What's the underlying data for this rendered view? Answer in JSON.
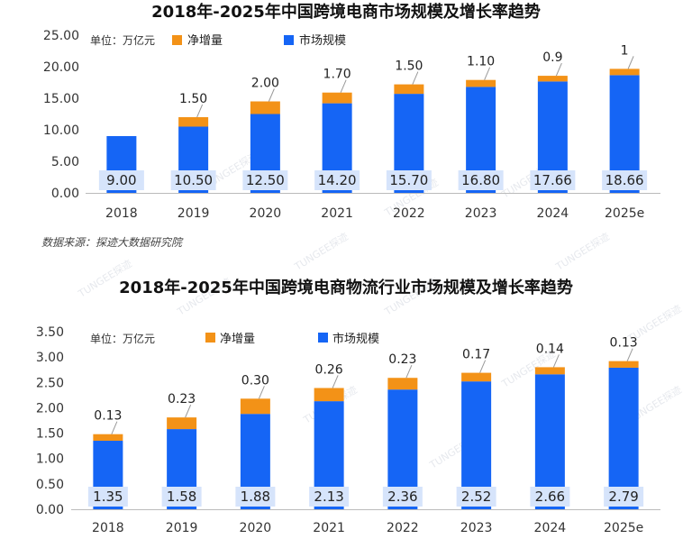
{
  "colors": {
    "market": "#1565f5",
    "increment": "#f39217",
    "label_box": "#d6e4fb",
    "axis": "#bbbbbb"
  },
  "watermark": "TUNGEE探迹",
  "chart_data": [
    {
      "type": "bar",
      "title": "2018年-2025年中国跨境电商市场规模及增长率趋势",
      "unit_label": "单位：万亿元",
      "legend": {
        "increment": "净增量",
        "market": "市场规模"
      },
      "categories": [
        "2018",
        "2019",
        "2020",
        "2021",
        "2022",
        "2023",
        "2024",
        "2025e"
      ],
      "series": [
        {
          "name": "市场规模",
          "values": [
            9.0,
            10.5,
            12.5,
            14.2,
            15.7,
            16.8,
            17.66,
            18.66
          ]
        },
        {
          "name": "净增量",
          "values": [
            null,
            1.5,
            2.0,
            1.7,
            1.5,
            1.1,
            0.9,
            1
          ]
        }
      ],
      "value_labels": [
        "9.00",
        "10.50",
        "12.50",
        "14.20",
        "15.70",
        "16.80",
        "17.66",
        "18.66"
      ],
      "increment_labels": [
        "",
        "1.50",
        "2.00",
        "1.70",
        "1.50",
        "1.10",
        "0.9",
        "1"
      ],
      "ylim": [
        0,
        25
      ],
      "yticks": [
        "0.00",
        "5.00",
        "10.00",
        "15.00",
        "20.00",
        "25.00"
      ],
      "source": "数据来源：探迹大数据研究院"
    },
    {
      "type": "bar",
      "title": "2018年-2025年中国跨境电商物流行业市场规模及增长率趋势",
      "unit_label": "单位：万亿元",
      "legend": {
        "increment": "净增量",
        "market": "市场规模"
      },
      "categories": [
        "2018",
        "2019",
        "2020",
        "2021",
        "2022",
        "2023",
        "2024",
        "2025e"
      ],
      "series": [
        {
          "name": "市场规模",
          "values": [
            1.35,
            1.58,
            1.88,
            2.13,
            2.36,
            2.52,
            2.66,
            2.79
          ]
        },
        {
          "name": "净增量",
          "values": [
            0.13,
            0.23,
            0.3,
            0.26,
            0.23,
            0.17,
            0.14,
            0.13
          ]
        }
      ],
      "value_labels": [
        "1.35",
        "1.58",
        "1.88",
        "2.13",
        "2.36",
        "2.52",
        "2.66",
        "2.79"
      ],
      "increment_labels": [
        "0.13",
        "0.23",
        "0.30",
        "0.26",
        "0.23",
        "0.17",
        "0.14",
        "0.13"
      ],
      "ylim": [
        0,
        3.5
      ],
      "yticks": [
        "0.00",
        "0.50",
        "1.00",
        "1.50",
        "2.00",
        "2.50",
        "3.00",
        "3.50"
      ]
    }
  ]
}
